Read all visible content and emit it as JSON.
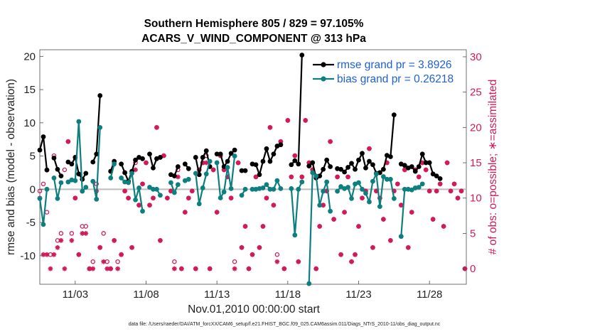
{
  "chart_data": {
    "type": "line",
    "title_line1": "Southern Hemisphere 805 / 829 = 97.105%",
    "title_line2": "ACARS_V_WIND_COMPONENT @ 313 hPa",
    "xlabel": "Nov.01,2010 00:00:00 start",
    "ylabel_left": "rmse and bias (model - observation)",
    "ylabel_right": "# of obs: o=possible; ∗=assimilated",
    "footer": "data file: /Users/raeder/DAI/ATM_forcXX/CAM6_setup/f.e21.FHIST_BGC.f09_025.CAM6assim.011/Diags_NTrS_2010-11/obs_diag_output.nc",
    "xlim": [
      0.5,
      30.6
    ],
    "ylim_left": [
      -14.3,
      21
    ],
    "ylim_right": [
      -2.2,
      31.0
    ],
    "x_ticks": [
      {
        "x": 3,
        "label": "11/03"
      },
      {
        "x": 8,
        "label": "11/08"
      },
      {
        "x": 13,
        "label": "11/13"
      },
      {
        "x": 18,
        "label": "11/18"
      },
      {
        "x": 23,
        "label": "11/23"
      },
      {
        "x": 28,
        "label": "11/28"
      }
    ],
    "y_ticks_left": [
      "20",
      "15",
      "10",
      "5",
      "0",
      "-5",
      "-10"
    ],
    "y_ticks_right": [
      "30",
      "25",
      "20",
      "15",
      "10",
      "5",
      "0"
    ],
    "legend": {
      "rmse": "rmse grand pr = 3.8926",
      "bias": "bias grand pr = 0.26218"
    },
    "colors": {
      "rmse": "#000000",
      "bias": "#0e7f7f",
      "obs": "#d01a5a",
      "zero_line": "#bdbdbd",
      "legend_text": "#1f5fd6"
    },
    "series": [
      {
        "name": "rmse",
        "x": [
          0.5,
          0.75,
          1.0,
          1.25,
          1.5,
          1.75,
          2.0,
          2.25,
          2.5,
          2.75,
          3.0,
          3.25,
          3.5,
          3.75,
          4.0,
          4.25,
          4.5,
          4.75,
          5.0,
          5.25,
          5.5,
          5.75,
          6.0,
          6.25,
          6.5,
          6.75,
          7.0,
          7.25,
          7.5,
          7.75,
          8.0,
          8.25,
          8.5,
          8.75,
          9.0,
          9.25,
          9.5,
          9.75,
          10.0,
          10.25,
          10.5,
          10.75,
          11.0,
          11.25,
          11.5,
          11.75,
          12.0,
          12.25,
          12.5,
          12.75,
          13.0,
          13.25,
          13.5,
          13.75,
          14.0,
          14.25,
          14.5,
          14.75,
          15.0,
          15.25,
          15.5,
          15.75,
          16.0,
          16.25,
          16.5,
          16.75,
          17.0,
          17.25,
          17.5,
          17.75,
          18.0,
          18.25,
          18.5,
          18.75,
          19.0,
          19.25,
          19.5,
          19.75,
          20.0,
          20.25,
          20.5,
          20.75,
          21.0,
          21.25,
          21.5,
          21.75,
          22.0,
          22.25,
          22.5,
          22.75,
          23.0,
          23.25,
          23.5,
          23.75,
          24.0,
          24.25,
          24.5,
          24.75,
          25.0,
          25.25,
          25.5,
          25.75,
          26.0,
          26.25,
          26.5,
          26.75,
          27.0,
          27.25,
          27.5,
          27.75,
          28.0,
          28.25,
          28.5,
          28.75,
          29.0,
          29.25,
          29.5,
          29.75,
          30.0,
          30.25,
          30.5
        ],
        "values": [
          5.9,
          7.9,
          2.9,
          null,
          4.7,
          3.0,
          2.0,
          null,
          4.1,
          3.8,
          4.8,
          2.3,
          1.5,
          2.4,
          null,
          4.1,
          5.3,
          14.1,
          null,
          null,
          2.7,
          4.2,
          null,
          3.8,
          2.5,
          1.2,
          2.7,
          4.4,
          4.8,
          4.6,
          null,
          5.3,
          3.2,
          4.6,
          4.8,
          null,
          null,
          2.2,
          2.0,
          3.4,
          null,
          3.8,
          3.1,
          null,
          4.8,
          2.2,
          4.8,
          5.8,
          3.4,
          null,
          5.3,
          5.3,
          3.4,
          4.2,
          5.4,
          5.9,
          null,
          2.8,
          2.8,
          null,
          3.8,
          3.7,
          2.2,
          4.2,
          6.1,
          4.2,
          5.3,
          6.5,
          6.7,
          null,
          null,
          3.7,
          4.3,
          3.8,
          20.2,
          null,
          3.5,
          4.0,
          1.7,
          2.0,
          3.0,
          4.4,
          3.4,
          null,
          3.1,
          3.0,
          2.6,
          3.3,
          3.9,
          3.0,
          4.4,
          5.4,
          3.2,
          4.2,
          3.7,
          2.4,
          2.5,
          3.0,
          5.1,
          4.9,
          11.2,
          null,
          3.8,
          3.6,
          3.2,
          3.4,
          2.7,
          3.4,
          5.3,
          4.0,
          4.0,
          2.3,
          2.0,
          1.6,
          null,
          null,
          null,
          null,
          null,
          null,
          null
        ],
        "values_note": "rmse per analysis time; null = no data"
      },
      {
        "name": "bias",
        "x": [
          0.5,
          0.75,
          1.0,
          1.25,
          1.5,
          1.75,
          2.0,
          2.25,
          2.5,
          2.75,
          3.0,
          3.25,
          3.5,
          3.75,
          4.0,
          4.25,
          4.5,
          4.75,
          5.0,
          5.25,
          5.5,
          5.75,
          6.0,
          6.25,
          6.5,
          6.75,
          7.0,
          7.25,
          7.5,
          7.75,
          8.0,
          8.25,
          8.5,
          8.75,
          9.0,
          9.25,
          9.5,
          9.75,
          10.0,
          10.25,
          10.5,
          10.75,
          11.0,
          11.25,
          11.5,
          11.75,
          12.0,
          12.25,
          12.5,
          12.75,
          13.0,
          13.25,
          13.5,
          13.75,
          14.0,
          14.25,
          14.5,
          14.75,
          15.0,
          15.25,
          15.5,
          15.75,
          16.0,
          16.25,
          16.5,
          16.75,
          17.0,
          17.25,
          17.5,
          17.75,
          18.0,
          18.25,
          18.5,
          18.75,
          19.0,
          19.25,
          19.5,
          19.75,
          20.0,
          20.25,
          20.5,
          20.75,
          21.0,
          21.25,
          21.5,
          21.75,
          22.0,
          22.25,
          22.5,
          22.75,
          23.0,
          23.25,
          23.5,
          23.75,
          24.0,
          24.25,
          24.5,
          24.75,
          25.0,
          25.25,
          25.5,
          25.75,
          26.0,
          26.25,
          26.5,
          26.75,
          27.0,
          27.25,
          27.5,
          27.75,
          28.0,
          28.25,
          28.5,
          28.75,
          29.0,
          29.25,
          29.5,
          29.75,
          30.0,
          30.25,
          30.5
        ],
        "values": [
          -1.4,
          -5.3,
          0.0,
          null,
          1.7,
          -1.4,
          1.0,
          null,
          1.1,
          1.4,
          1.3,
          10.2,
          -0.3,
          0.3,
          null,
          1.2,
          -1.5,
          9.3,
          null,
          null,
          1.7,
          3.8,
          null,
          1.7,
          1.1,
          1.0,
          2.4,
          -1.6,
          0.2,
          -3.3,
          null,
          0.3,
          0.0,
          0.0,
          -0.9,
          null,
          null,
          1.0,
          -0.5,
          0.7,
          null,
          1.3,
          1.5,
          null,
          2.4,
          -2.2,
          0.2,
          2.3,
          4.2,
          null,
          4.0,
          -1.3,
          -0.4,
          3.3,
          0.1,
          5.0,
          null,
          -0.9,
          0.0,
          null,
          0.0,
          0.0,
          0.1,
          0.2,
          0.7,
          0.0,
          0.0,
          1.3,
          0.1,
          null,
          null,
          0.1,
          -6.9,
          0.0,
          1.1,
          null,
          -14.2,
          2.5,
          2.0,
          -2.4,
          -0.3,
          1.1,
          -3.3,
          null,
          -0.3,
          0.4,
          0.1,
          0.3,
          -1.4,
          0.8,
          1.0,
          0.0,
          -0.6,
          -1.9,
          1.2,
          2.3,
          -2.6,
          1.9,
          1.5,
          1.5,
          -1.4,
          null,
          -7.1,
          0.0,
          0.0,
          -0.1,
          0.2,
          0.3,
          0.8,
          null,
          null,
          null,
          null,
          null,
          null,
          null,
          null,
          null,
          null,
          null,
          null
        ],
        "values_note": "bias per analysis time; null = no data"
      },
      {
        "name": "obs_possible",
        "x": [
          0.5,
          0.75,
          1.0,
          1.25,
          1.5,
          1.75,
          2.0,
          2.25,
          2.5,
          2.75,
          3.0,
          3.25,
          3.5,
          3.75,
          4.0,
          4.25,
          4.5,
          4.75,
          5.0,
          5.25,
          5.5,
          5.75,
          6.0,
          6.25,
          6.5,
          6.75,
          7.0,
          7.25,
          7.5,
          7.75,
          8.0,
          8.25,
          8.5,
          8.75,
          9.0,
          9.25,
          9.5,
          9.75,
          10.0,
          10.25,
          10.5,
          10.75,
          11.0,
          11.25,
          11.5,
          11.75,
          12.0,
          12.25,
          12.5,
          12.75,
          13.0,
          13.25,
          13.5,
          13.75,
          14.0,
          14.25,
          14.5,
          14.75,
          15.0,
          15.25,
          15.5,
          15.75,
          16.0,
          16.25,
          16.5,
          16.75,
          17.0,
          17.25,
          17.5,
          17.75,
          18.0,
          18.25,
          18.5,
          18.75,
          19.0,
          19.25,
          19.5,
          19.75,
          20.0,
          20.25,
          20.5,
          20.75,
          21.0,
          21.25,
          21.5,
          21.75,
          22.0,
          22.25,
          22.5,
          22.75,
          23.0,
          23.25,
          23.5,
          23.75,
          24.0,
          24.25,
          24.5,
          24.75,
          25.0,
          25.25,
          25.5,
          25.75,
          26.0,
          26.25,
          26.5,
          26.75,
          27.0,
          27.25,
          27.5,
          27.75,
          28.0,
          28.25,
          28.5,
          28.75,
          29.0,
          29.25,
          29.5,
          29.75,
          30.0,
          30.25,
          30.5
        ],
        "values": [
          11,
          12,
          8,
          2,
          16,
          4,
          5,
          14,
          18,
          5,
          10,
          2,
          6,
          6,
          0,
          1,
          12,
          3,
          5,
          1,
          0,
          4,
          1,
          2,
          11,
          10,
          3,
          15,
          9,
          12,
          15,
          9,
          10,
          20,
          4,
          16,
          10,
          11,
          1,
          14,
          0,
          8,
          10,
          11,
          0,
          14,
          15,
          16,
          0,
          14,
          8,
          16,
          14,
          13,
          10,
          1,
          15,
          3,
          6,
          0,
          2,
          13,
          3,
          6,
          10,
          20,
          9,
          2,
          18,
          0,
          21,
          13,
          16,
          1,
          13,
          21,
          15,
          14,
          0,
          6,
          9,
          11,
          18,
          7,
          13,
          2,
          8,
          13,
          1,
          2,
          6,
          10,
          11,
          17,
          3,
          11,
          10,
          7,
          15,
          4,
          11,
          12,
          9,
          14,
          3,
          8,
          14,
          13,
          15,
          14,
          11,
          7,
          11,
          12,
          6,
          15,
          11,
          12,
          10,
          11,
          0
        ],
        "values_note": "number of possible obs per analysis time (right axis)"
      },
      {
        "name": "obs_assimilated",
        "x": [
          0.5,
          0.75,
          1.0,
          1.25,
          1.5,
          1.75,
          2.0,
          2.25,
          2.5,
          2.75,
          3.0,
          3.25,
          3.5,
          3.75,
          4.0,
          4.25,
          4.5,
          4.75,
          5.0,
          5.25,
          5.5,
          5.75,
          6.0,
          6.25,
          6.5,
          6.75,
          7.0,
          7.25,
          7.5,
          7.75,
          8.0,
          8.25,
          8.5,
          8.75,
          9.0,
          9.25,
          9.5,
          9.75,
          10.0,
          10.25,
          10.5,
          10.75,
          11.0,
          11.25,
          11.5,
          11.75,
          12.0,
          12.25,
          12.5,
          12.75,
          13.0,
          13.25,
          13.5,
          13.75,
          14.0,
          14.25,
          14.5,
          14.75,
          15.0,
          15.25,
          15.5,
          15.75,
          16.0,
          16.25,
          16.5,
          16.75,
          17.0,
          17.25,
          17.5,
          17.75,
          18.0,
          18.25,
          18.5,
          18.75,
          19.0,
          19.25,
          19.5,
          19.75,
          20.0,
          20.25,
          20.5,
          20.75,
          21.0,
          21.25,
          21.5,
          21.75,
          22.0,
          22.25,
          22.5,
          22.75,
          23.0,
          23.25,
          23.5,
          23.75,
          24.0,
          24.25,
          24.5,
          24.75,
          25.0,
          25.25,
          25.5,
          25.75,
          26.0,
          26.25,
          26.5,
          26.75,
          27.0,
          27.25,
          27.5,
          27.75,
          28.0,
          28.25,
          28.5,
          28.75,
          29.0,
          29.25,
          29.5,
          29.75,
          30.0,
          30.25,
          30.5
        ],
        "values": [
          10,
          2,
          2,
          0,
          2,
          3,
          4,
          0,
          18,
          4,
          10,
          2,
          5,
          5,
          0,
          0,
          11,
          3,
          1,
          0,
          0,
          4,
          0,
          2,
          11,
          10,
          3,
          14,
          9,
          12,
          15,
          9,
          10,
          20,
          4,
          16,
          10,
          11,
          0,
          13,
          0,
          8,
          10,
          11,
          0,
          14,
          15,
          15,
          0,
          14,
          8,
          16,
          14,
          13,
          10,
          0,
          15,
          3,
          6,
          0,
          2,
          13,
          3,
          6,
          10,
          20,
          9,
          1,
          18,
          0,
          21,
          13,
          16,
          1,
          13,
          21,
          15,
          14,
          0,
          6,
          9,
          11,
          18,
          7,
          13,
          2,
          8,
          13,
          1,
          2,
          6,
          10,
          11,
          17,
          3,
          11,
          10,
          7,
          15,
          4,
          11,
          12,
          9,
          14,
          3,
          8,
          14,
          13,
          15,
          14,
          11,
          7,
          11,
          12,
          6,
          15,
          11,
          12,
          10,
          11,
          0
        ],
        "values_note": "number of assimilated obs per analysis time (right axis)"
      }
    ]
  }
}
